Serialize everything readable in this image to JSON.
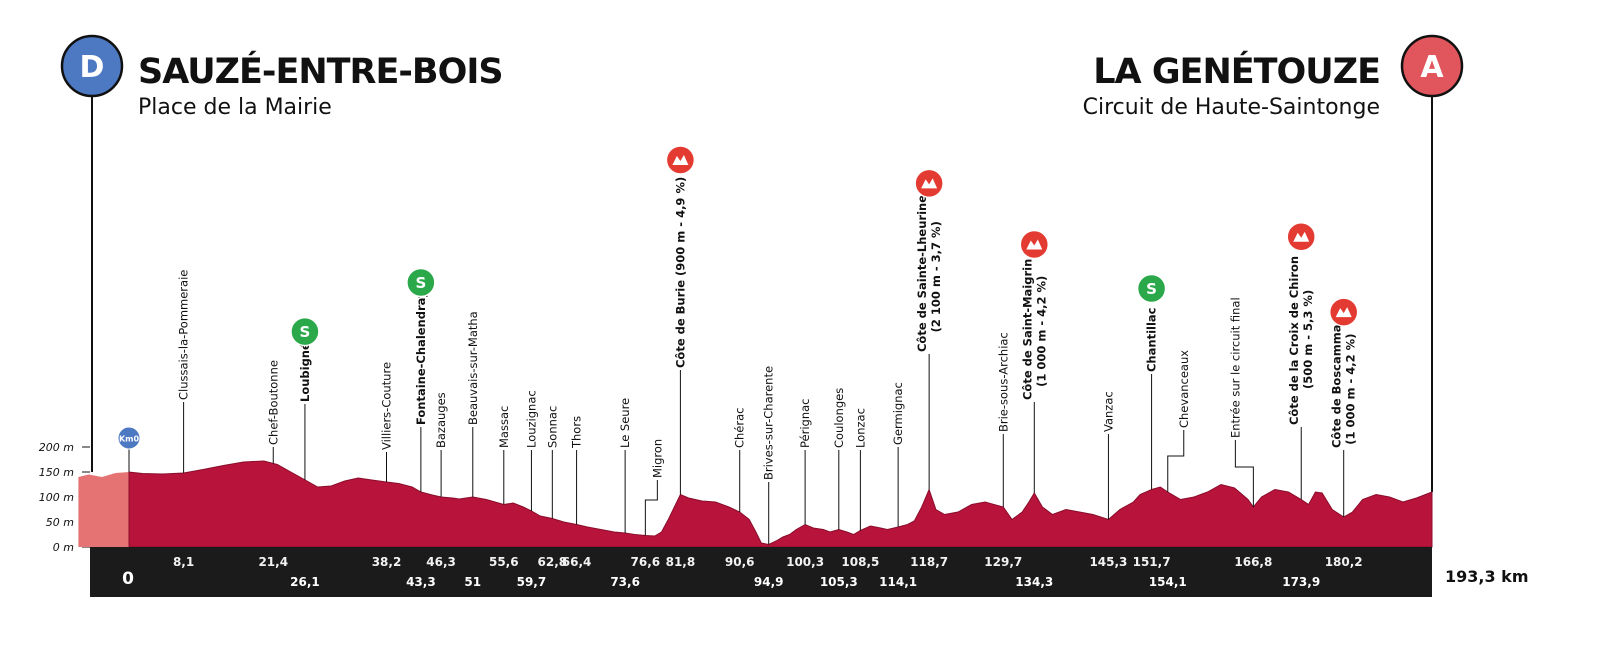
{
  "start": {
    "badge": "D",
    "city": "SAUZÉ-ENTRE-BOIS",
    "place": "Place de la Mairie",
    "color": "#4d78c2"
  },
  "finish": {
    "badge": "A",
    "city": "LA GENÉTOUZE",
    "place": "Circuit de Haute-Saintonge",
    "color": "#e0565c"
  },
  "km0_label": "Km0",
  "total_distance": "193,3 km",
  "colors": {
    "profile": "#b8133a",
    "profile_dark": "#8a0d2b",
    "neutral_zone": "#e57373",
    "band": "#1b1b1b",
    "sprint": "#2aa84a",
    "climb": "#e33b32"
  },
  "chart_data": {
    "type": "area",
    "title": "",
    "xlabel": "",
    "ylabel": "",
    "x_unit": "km",
    "y_unit": "m",
    "xlim": [
      0,
      193.3
    ],
    "ylim": [
      0,
      200
    ],
    "y_ticks": [
      "0 m",
      "50 m",
      "100 m",
      "150 m",
      "200 m"
    ],
    "y_tick_values": [
      0,
      50,
      100,
      150,
      200
    ],
    "neutral_zone_km": [
      -7.5,
      0
    ],
    "elevation_profile": [
      [
        -7.5,
        140
      ],
      [
        -6,
        145
      ],
      [
        -4,
        140
      ],
      [
        -2,
        148
      ],
      [
        0,
        150
      ],
      [
        2,
        147
      ],
      [
        5,
        146
      ],
      [
        8.1,
        148
      ],
      [
        11,
        155
      ],
      [
        14,
        163
      ],
      [
        17,
        170
      ],
      [
        20,
        172
      ],
      [
        22,
        165
      ],
      [
        24,
        150
      ],
      [
        26,
        135
      ],
      [
        28,
        120
      ],
      [
        30,
        122
      ],
      [
        32,
        132
      ],
      [
        34,
        138
      ],
      [
        36,
        134
      ],
      [
        38.2,
        130
      ],
      [
        40,
        127
      ],
      [
        42,
        120
      ],
      [
        43.3,
        110
      ],
      [
        45,
        104
      ],
      [
        46.3,
        100
      ],
      [
        48,
        98
      ],
      [
        49,
        96
      ],
      [
        51,
        100
      ],
      [
        53,
        95
      ],
      [
        55.6,
        85
      ],
      [
        57,
        88
      ],
      [
        58.5,
        80
      ],
      [
        59.7,
        72
      ],
      [
        61,
        62
      ],
      [
        62.8,
        57
      ],
      [
        64.5,
        50
      ],
      [
        66.4,
        45
      ],
      [
        68,
        40
      ],
      [
        70,
        35
      ],
      [
        72,
        30
      ],
      [
        73.6,
        28
      ],
      [
        75,
        25
      ],
      [
        76.6,
        23
      ],
      [
        78,
        22
      ],
      [
        79,
        30
      ],
      [
        80,
        55
      ],
      [
        81.8,
        105
      ],
      [
        83,
        98
      ],
      [
        85,
        92
      ],
      [
        87,
        90
      ],
      [
        89,
        80
      ],
      [
        90.6,
        70
      ],
      [
        92,
        55
      ],
      [
        93,
        30
      ],
      [
        93.8,
        8
      ],
      [
        94.9,
        5
      ],
      [
        96,
        12
      ],
      [
        97,
        20
      ],
      [
        98,
        25
      ],
      [
        99,
        35
      ],
      [
        100.3,
        45
      ],
      [
        101.5,
        38
      ],
      [
        103,
        35
      ],
      [
        104,
        30
      ],
      [
        105.3,
        35
      ],
      [
        106.5,
        30
      ],
      [
        107.5,
        25
      ],
      [
        108.5,
        33
      ],
      [
        110,
        42
      ],
      [
        111.5,
        38
      ],
      [
        112.5,
        35
      ],
      [
        114.1,
        40
      ],
      [
        115.5,
        45
      ],
      [
        116.5,
        52
      ],
      [
        117.6,
        80
      ],
      [
        118.7,
        115
      ],
      [
        119.7,
        75
      ],
      [
        121,
        65
      ],
      [
        123,
        70
      ],
      [
        125,
        85
      ],
      [
        127,
        90
      ],
      [
        129.7,
        80
      ],
      [
        131,
        55
      ],
      [
        132.5,
        70
      ],
      [
        133.5,
        90
      ],
      [
        134.3,
        108
      ],
      [
        135.5,
        80
      ],
      [
        137,
        65
      ],
      [
        139,
        75
      ],
      [
        141,
        70
      ],
      [
        143,
        65
      ],
      [
        145.3,
        55
      ],
      [
        147,
        75
      ],
      [
        149,
        90
      ],
      [
        150,
        105
      ],
      [
        151.7,
        115
      ],
      [
        153,
        120
      ],
      [
        154.1,
        110
      ],
      [
        156,
        95
      ],
      [
        158,
        100
      ],
      [
        160,
        110
      ],
      [
        162,
        125
      ],
      [
        164,
        118
      ],
      [
        166,
        95
      ],
      [
        166.8,
        80
      ],
      [
        168,
        100
      ],
      [
        170,
        115
      ],
      [
        172,
        110
      ],
      [
        173.9,
        95
      ],
      [
        175,
        85
      ],
      [
        176,
        110
      ],
      [
        177,
        108
      ],
      [
        178.5,
        75
      ],
      [
        180.2,
        60
      ],
      [
        181.5,
        70
      ],
      [
        183,
        95
      ],
      [
        185,
        105
      ],
      [
        187,
        100
      ],
      [
        189,
        90
      ],
      [
        191,
        98
      ],
      [
        193.3,
        110
      ]
    ],
    "km_markers": [
      {
        "km": 0,
        "label": "0",
        "row": 1
      },
      {
        "km": 8.1,
        "label": "8,1",
        "row": 0
      },
      {
        "km": 21.4,
        "label": "21,4",
        "row": 0
      },
      {
        "km": 26.1,
        "label": "26,1",
        "row": 1
      },
      {
        "km": 38.2,
        "label": "38,2",
        "row": 0
      },
      {
        "km": 43.3,
        "label": "43,3",
        "row": 1
      },
      {
        "km": 46.3,
        "label": "46,3",
        "row": 0
      },
      {
        "km": 51,
        "label": "51",
        "row": 1
      },
      {
        "km": 55.6,
        "label": "55,6",
        "row": 0
      },
      {
        "km": 59.7,
        "label": "59,7",
        "row": 1
      },
      {
        "km": 62.8,
        "label": "62,8",
        "row": 0
      },
      {
        "km": 66.4,
        "label": "66,4",
        "row": 0
      },
      {
        "km": 73.6,
        "label": "73,6",
        "row": 1
      },
      {
        "km": 76.6,
        "label": "76,6",
        "row": 0
      },
      {
        "km": 81.8,
        "label": "81,8",
        "row": 0
      },
      {
        "km": 90.6,
        "label": "90,6",
        "row": 0
      },
      {
        "km": 94.9,
        "label": "94,9",
        "row": 1
      },
      {
        "km": 100.3,
        "label": "100,3",
        "row": 0
      },
      {
        "km": 105.3,
        "label": "105,3",
        "row": 1
      },
      {
        "km": 108.5,
        "label": "108,5",
        "row": 0
      },
      {
        "km": 114.1,
        "label": "114,1",
        "row": 1
      },
      {
        "km": 118.7,
        "label": "118,7",
        "row": 0
      },
      {
        "km": 129.7,
        "label": "129,7",
        "row": 0
      },
      {
        "km": 134.3,
        "label": "134,3",
        "row": 1
      },
      {
        "km": 145.3,
        "label": "145,3",
        "row": 0
      },
      {
        "km": 151.7,
        "label": "151,7",
        "row": 0
      },
      {
        "km": 154.1,
        "label": "154,1",
        "row": 1
      },
      {
        "km": 166.8,
        "label": "166,8",
        "row": 0
      },
      {
        "km": 173.9,
        "label": "173,9",
        "row": 1
      },
      {
        "km": 180.2,
        "label": "180,2",
        "row": 0
      }
    ],
    "points": [
      {
        "km": 8.1,
        "lines": [
          "Clussais-la-Pommeraie"
        ],
        "bold": false
      },
      {
        "km": 21.4,
        "lines": [
          "Chef-Boutonne"
        ],
        "bold": false
      },
      {
        "km": 26.1,
        "lines": [
          "Loubigné"
        ],
        "bold": true,
        "marker": "S"
      },
      {
        "km": 38.2,
        "lines": [
          "Villiers-Couture"
        ],
        "bold": false
      },
      {
        "km": 43.3,
        "lines": [
          "Fontaine-Chalendray"
        ],
        "bold": true,
        "marker": "S"
      },
      {
        "km": 46.3,
        "lines": [
          "Bazauges"
        ],
        "bold": false
      },
      {
        "km": 51,
        "lines": [
          "Beauvais-sur-Matha"
        ],
        "bold": false
      },
      {
        "km": 55.6,
        "lines": [
          "Massac"
        ],
        "bold": false
      },
      {
        "km": 59.7,
        "lines": [
          "Louzignac"
        ],
        "bold": false
      },
      {
        "km": 62.8,
        "lines": [
          "Sonnac"
        ],
        "bold": false
      },
      {
        "km": 66.4,
        "lines": [
          "Thors"
        ],
        "bold": false
      },
      {
        "km": 73.6,
        "lines": [
          "Le Seure"
        ],
        "bold": false
      },
      {
        "km": 76.6,
        "lines": [
          "Migron"
        ],
        "bold": false
      },
      {
        "km": 81.8,
        "lines": [
          "Côte de Burie (900 m - 4,9 %)"
        ],
        "bold": true,
        "marker": "climb"
      },
      {
        "km": 90.6,
        "lines": [
          "Chérac"
        ],
        "bold": false
      },
      {
        "km": 94.9,
        "lines": [
          "Brives-sur-Charente"
        ],
        "bold": false
      },
      {
        "km": 100.3,
        "lines": [
          "Pérignac"
        ],
        "bold": false
      },
      {
        "km": 105.3,
        "lines": [
          "Coulonges"
        ],
        "bold": false
      },
      {
        "km": 108.5,
        "lines": [
          "Lonzac"
        ],
        "bold": false
      },
      {
        "km": 114.1,
        "lines": [
          "Germignac"
        ],
        "bold": false
      },
      {
        "km": 118.7,
        "lines": [
          "Côte de Sainte-Lheurine",
          "(2 100 m - 3,7 %)"
        ],
        "bold": true,
        "marker": "climb"
      },
      {
        "km": 129.7,
        "lines": [
          "Brie-sous-Archiac"
        ],
        "bold": false
      },
      {
        "km": 134.3,
        "lines": [
          "Côte de Saint-Maigrin",
          "(1 000 m - 4,2 %)"
        ],
        "bold": true,
        "marker": "climb"
      },
      {
        "km": 145.3,
        "lines": [
          "Vanzac"
        ],
        "bold": false
      },
      {
        "km": 151.7,
        "lines": [
          "Chantillac"
        ],
        "bold": true,
        "marker": "S"
      },
      {
        "km": 154.1,
        "lines": [
          "Chevanceaux"
        ],
        "bold": false
      },
      {
        "km": 166.8,
        "lines": [
          "Entrée sur le circuit final"
        ],
        "bold": false
      },
      {
        "km": 173.9,
        "lines": [
          "Côte de la Croix de Chiron",
          "(500 m - 5,3 %)"
        ],
        "bold": true,
        "marker": "climb"
      },
      {
        "km": 180.2,
        "lines": [
          "Côte de Boscammant",
          "(1 000 m - 4,2 %)"
        ],
        "bold": true,
        "marker": "climb"
      }
    ],
    "sprint_label": "S"
  }
}
